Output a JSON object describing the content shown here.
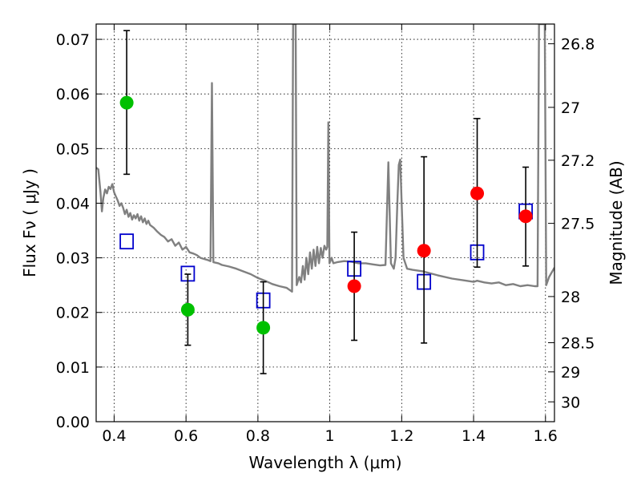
{
  "chart_data": {
    "type": "scatter",
    "title": "",
    "xlabel": "Wavelength  λ (μm)",
    "ylabel": "Flux  Fν  ( μJy )",
    "y2label": "Magnitude (AB)",
    "xlim": [
      0.35,
      1.625
    ],
    "ylim": [
      0,
      0.0728
    ],
    "grid": true,
    "x_ticks": [
      {
        "value": 0.4,
        "label": "0.4"
      },
      {
        "value": 0.6,
        "label": "0.6"
      },
      {
        "value": 0.8,
        "label": "0.8"
      },
      {
        "value": 1.0,
        "label": "1"
      },
      {
        "value": 1.2,
        "label": "1.2"
      },
      {
        "value": 1.4,
        "label": "1.4"
      },
      {
        "value": 1.6,
        "label": "1.6"
      }
    ],
    "y_ticks": [
      {
        "value": 0.0,
        "label": "0.00"
      },
      {
        "value": 0.01,
        "label": "0.01"
      },
      {
        "value": 0.02,
        "label": "0.02"
      },
      {
        "value": 0.03,
        "label": "0.03"
      },
      {
        "value": 0.04,
        "label": "0.04"
      },
      {
        "value": 0.05,
        "label": "0.05"
      },
      {
        "value": 0.06,
        "label": "0.06"
      },
      {
        "value": 0.07,
        "label": "0.07"
      }
    ],
    "y2_ticks": [
      {
        "value": 26.8,
        "label": "26.8"
      },
      {
        "value": 27.0,
        "label": "27"
      },
      {
        "value": 27.2,
        "label": "27.2"
      },
      {
        "value": 27.5,
        "label": "27.5"
      },
      {
        "value": 28.0,
        "label": "28"
      },
      {
        "value": 28.5,
        "label": "28.5"
      },
      {
        "value": 29.0,
        "label": "29"
      },
      {
        "value": 30.0,
        "label": "30"
      }
    ],
    "series": [
      {
        "kind": "line",
        "color": "#808080",
        "points": [
          [
            0.35,
            0.0465
          ],
          [
            0.356,
            0.0462
          ],
          [
            0.362,
            0.042
          ],
          [
            0.366,
            0.0385
          ],
          [
            0.37,
            0.041
          ],
          [
            0.375,
            0.0425
          ],
          [
            0.38,
            0.0418
          ],
          [
            0.385,
            0.043
          ],
          [
            0.39,
            0.0426
          ],
          [
            0.395,
            0.0435
          ],
          [
            0.4,
            0.042
          ],
          [
            0.405,
            0.0412
          ],
          [
            0.41,
            0.0405
          ],
          [
            0.415,
            0.0395
          ],
          [
            0.42,
            0.04
          ],
          [
            0.425,
            0.0392
          ],
          [
            0.43,
            0.038
          ],
          [
            0.435,
            0.0388
          ],
          [
            0.44,
            0.0375
          ],
          [
            0.445,
            0.0382
          ],
          [
            0.45,
            0.037
          ],
          [
            0.455,
            0.0378
          ],
          [
            0.46,
            0.0372
          ],
          [
            0.465,
            0.038
          ],
          [
            0.47,
            0.0368
          ],
          [
            0.475,
            0.0376
          ],
          [
            0.48,
            0.0365
          ],
          [
            0.485,
            0.0372
          ],
          [
            0.49,
            0.0362
          ],
          [
            0.495,
            0.0368
          ],
          [
            0.5,
            0.036
          ],
          [
            0.51,
            0.0355
          ],
          [
            0.52,
            0.0348
          ],
          [
            0.53,
            0.0342
          ],
          [
            0.54,
            0.0338
          ],
          [
            0.55,
            0.033
          ],
          [
            0.56,
            0.0334
          ],
          [
            0.57,
            0.0322
          ],
          [
            0.58,
            0.0328
          ],
          [
            0.59,
            0.0315
          ],
          [
            0.6,
            0.032
          ],
          [
            0.61,
            0.031
          ],
          [
            0.62,
            0.0308
          ],
          [
            0.63,
            0.0305
          ],
          [
            0.64,
            0.03
          ],
          [
            0.65,
            0.0298
          ],
          [
            0.66,
            0.0296
          ],
          [
            0.668,
            0.0294
          ],
          [
            0.672,
            0.062
          ],
          [
            0.676,
            0.0292
          ],
          [
            0.69,
            0.029
          ],
          [
            0.7,
            0.0287
          ],
          [
            0.72,
            0.0284
          ],
          [
            0.74,
            0.028
          ],
          [
            0.76,
            0.0275
          ],
          [
            0.78,
            0.027
          ],
          [
            0.8,
            0.0263
          ],
          [
            0.82,
            0.0258
          ],
          [
            0.84,
            0.0252
          ],
          [
            0.86,
            0.0248
          ],
          [
            0.88,
            0.0245
          ],
          [
            0.895,
            0.0238
          ],
          [
            0.898,
            0.0728
          ],
          [
            0.905,
            0.0728
          ],
          [
            0.908,
            0.025
          ],
          [
            0.915,
            0.0265
          ],
          [
            0.92,
            0.0255
          ],
          [
            0.925,
            0.0285
          ],
          [
            0.93,
            0.026
          ],
          [
            0.935,
            0.03
          ],
          [
            0.94,
            0.027
          ],
          [
            0.945,
            0.031
          ],
          [
            0.95,
            0.028
          ],
          [
            0.955,
            0.0315
          ],
          [
            0.96,
            0.0285
          ],
          [
            0.965,
            0.032
          ],
          [
            0.97,
            0.029
          ],
          [
            0.975,
            0.0318
          ],
          [
            0.98,
            0.03
          ],
          [
            0.985,
            0.0322
          ],
          [
            0.99,
            0.0315
          ],
          [
            0.993,
            0.032
          ],
          [
            0.996,
            0.0548
          ],
          [
            0.999,
            0.029
          ],
          [
            1.005,
            0.03
          ],
          [
            1.01,
            0.029
          ],
          [
            1.02,
            0.0292
          ],
          [
            1.04,
            0.0294
          ],
          [
            1.06,
            0.0293
          ],
          [
            1.08,
            0.029
          ],
          [
            1.1,
            0.029
          ],
          [
            1.12,
            0.0288
          ],
          [
            1.14,
            0.0286
          ],
          [
            1.155,
            0.0287
          ],
          [
            1.163,
            0.0475
          ],
          [
            1.17,
            0.029
          ],
          [
            1.178,
            0.028
          ],
          [
            1.183,
            0.03
          ],
          [
            1.188,
            0.04
          ],
          [
            1.192,
            0.047
          ],
          [
            1.196,
            0.048
          ],
          [
            1.2,
            0.04
          ],
          [
            1.205,
            0.03
          ],
          [
            1.215,
            0.028
          ],
          [
            1.23,
            0.0278
          ],
          [
            1.26,
            0.0275
          ],
          [
            1.3,
            0.0268
          ],
          [
            1.34,
            0.0262
          ],
          [
            1.38,
            0.0258
          ],
          [
            1.4,
            0.0256
          ],
          [
            1.41,
            0.0258
          ],
          [
            1.43,
            0.0255
          ],
          [
            1.45,
            0.0253
          ],
          [
            1.47,
            0.0255
          ],
          [
            1.49,
            0.025
          ],
          [
            1.51,
            0.0252
          ],
          [
            1.53,
            0.0248
          ],
          [
            1.55,
            0.025
          ],
          [
            1.57,
            0.0248
          ],
          [
            1.578,
            0.0248
          ],
          [
            1.582,
            0.0728
          ],
          [
            1.598,
            0.0728
          ],
          [
            1.602,
            0.025
          ],
          [
            1.61,
            0.0265
          ],
          [
            1.625,
            0.0282
          ]
        ]
      },
      {
        "kind": "open-square",
        "color": "#0000cc",
        "points": [
          [
            0.435,
            0.033
          ],
          [
            0.605,
            0.0271
          ],
          [
            0.815,
            0.0222
          ],
          [
            1.068,
            0.028
          ],
          [
            1.262,
            0.0256
          ],
          [
            1.41,
            0.031
          ],
          [
            1.545,
            0.0385
          ]
        ]
      },
      {
        "kind": "filled-circle",
        "color": "#00c000",
        "points": [
          {
            "x": 0.435,
            "y": 0.0584,
            "err_low": 0.0453,
            "err_high": 0.0716
          },
          {
            "x": 0.605,
            "y": 0.0205,
            "err_low": 0.014,
            "err_high": 0.027
          },
          {
            "x": 0.815,
            "y": 0.0172,
            "err_low": 0.0088,
            "err_high": 0.0256
          }
        ]
      },
      {
        "kind": "filled-circle",
        "color": "#ff0000",
        "points": [
          {
            "x": 1.068,
            "y": 0.0248,
            "err_low": 0.0149,
            "err_high": 0.0347
          },
          {
            "x": 1.262,
            "y": 0.0313,
            "err_low": 0.0144,
            "err_high": 0.0485
          },
          {
            "x": 1.41,
            "y": 0.0418,
            "err_low": 0.0283,
            "err_high": 0.0555
          },
          {
            "x": 1.545,
            "y": 0.0376,
            "err_low": 0.0285,
            "err_high": 0.0466
          }
        ]
      }
    ]
  }
}
